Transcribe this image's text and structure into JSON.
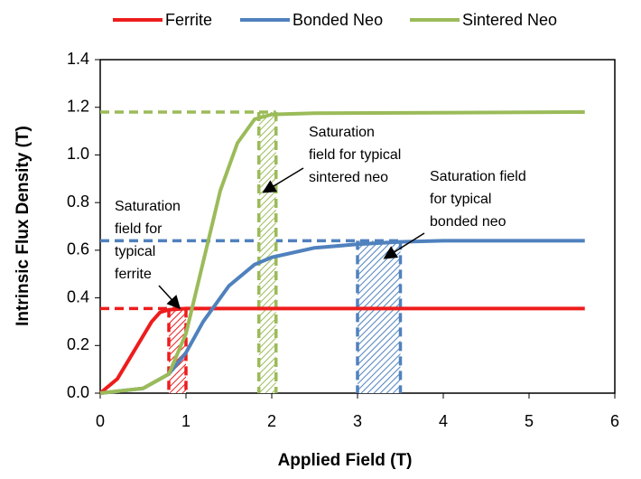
{
  "chart_data": {
    "type": "line",
    "x_label": "Applied Field (T)",
    "y_label": "Intrinsic Flux Density (T)",
    "xlim": [
      0,
      6
    ],
    "xticks": [
      0,
      1,
      2,
      3,
      4,
      5,
      6
    ],
    "ylim": [
      0,
      1.4
    ],
    "yticks": [
      {
        "value": 0,
        "label": "0.0"
      },
      {
        "value": 0.2,
        "label": "0.2"
      },
      {
        "value": 0.4,
        "label": "0.4"
      },
      {
        "value": 0.6,
        "label": "0.6"
      },
      {
        "value": 0.8,
        "label": "0.8"
      },
      {
        "value": 1.0,
        "label": "1.0"
      },
      {
        "value": 1.2,
        "label": "1.2"
      },
      {
        "value": 1.4,
        "label": "1.4"
      }
    ],
    "legend": "top",
    "series": [
      {
        "name": "Ferrite",
        "color": "#ee1c1c",
        "x": [
          0,
          0.2,
          0.4,
          0.6,
          0.7,
          0.8,
          1.0,
          2,
          3,
          4,
          5,
          5.65
        ],
        "values": [
          0,
          0.06,
          0.18,
          0.3,
          0.34,
          0.35,
          0.355,
          0.355,
          0.355,
          0.355,
          0.355,
          0.355
        ]
      },
      {
        "name": "Bonded Neo",
        "color": "#4f81bd",
        "x": [
          0,
          0.5,
          0.8,
          1.0,
          1.2,
          1.5,
          1.8,
          2.0,
          2.5,
          3.0,
          3.5,
          4.0,
          5.65
        ],
        "values": [
          0,
          0.02,
          0.08,
          0.17,
          0.3,
          0.45,
          0.54,
          0.57,
          0.61,
          0.625,
          0.635,
          0.64,
          0.64
        ]
      },
      {
        "name": "Sintered Neo",
        "color": "#9bbb59",
        "x": [
          0,
          0.5,
          0.8,
          1.0,
          1.2,
          1.4,
          1.6,
          1.8,
          2.0,
          2.5,
          5.65
        ],
        "values": [
          0,
          0.02,
          0.08,
          0.25,
          0.55,
          0.85,
          1.05,
          1.15,
          1.17,
          1.175,
          1.18
        ]
      }
    ],
    "bands": [
      {
        "series": 0,
        "x": [
          0.8,
          1.0
        ],
        "level": 0.355
      },
      {
        "series": 1,
        "x": [
          3.0,
          3.5
        ],
        "level": 0.64
      },
      {
        "series": 2,
        "x": [
          1.85,
          2.05
        ],
        "level": 1.18
      }
    ],
    "annotations": [
      {
        "lines": [
          "Saturation",
          "field for",
          "typical",
          "ferrite"
        ]
      },
      {
        "lines": [
          "Saturation",
          "field for typical",
          "sintered neo"
        ]
      },
      {
        "lines": [
          "Saturation field",
          "for typical",
          "bonded neo"
        ]
      }
    ]
  }
}
